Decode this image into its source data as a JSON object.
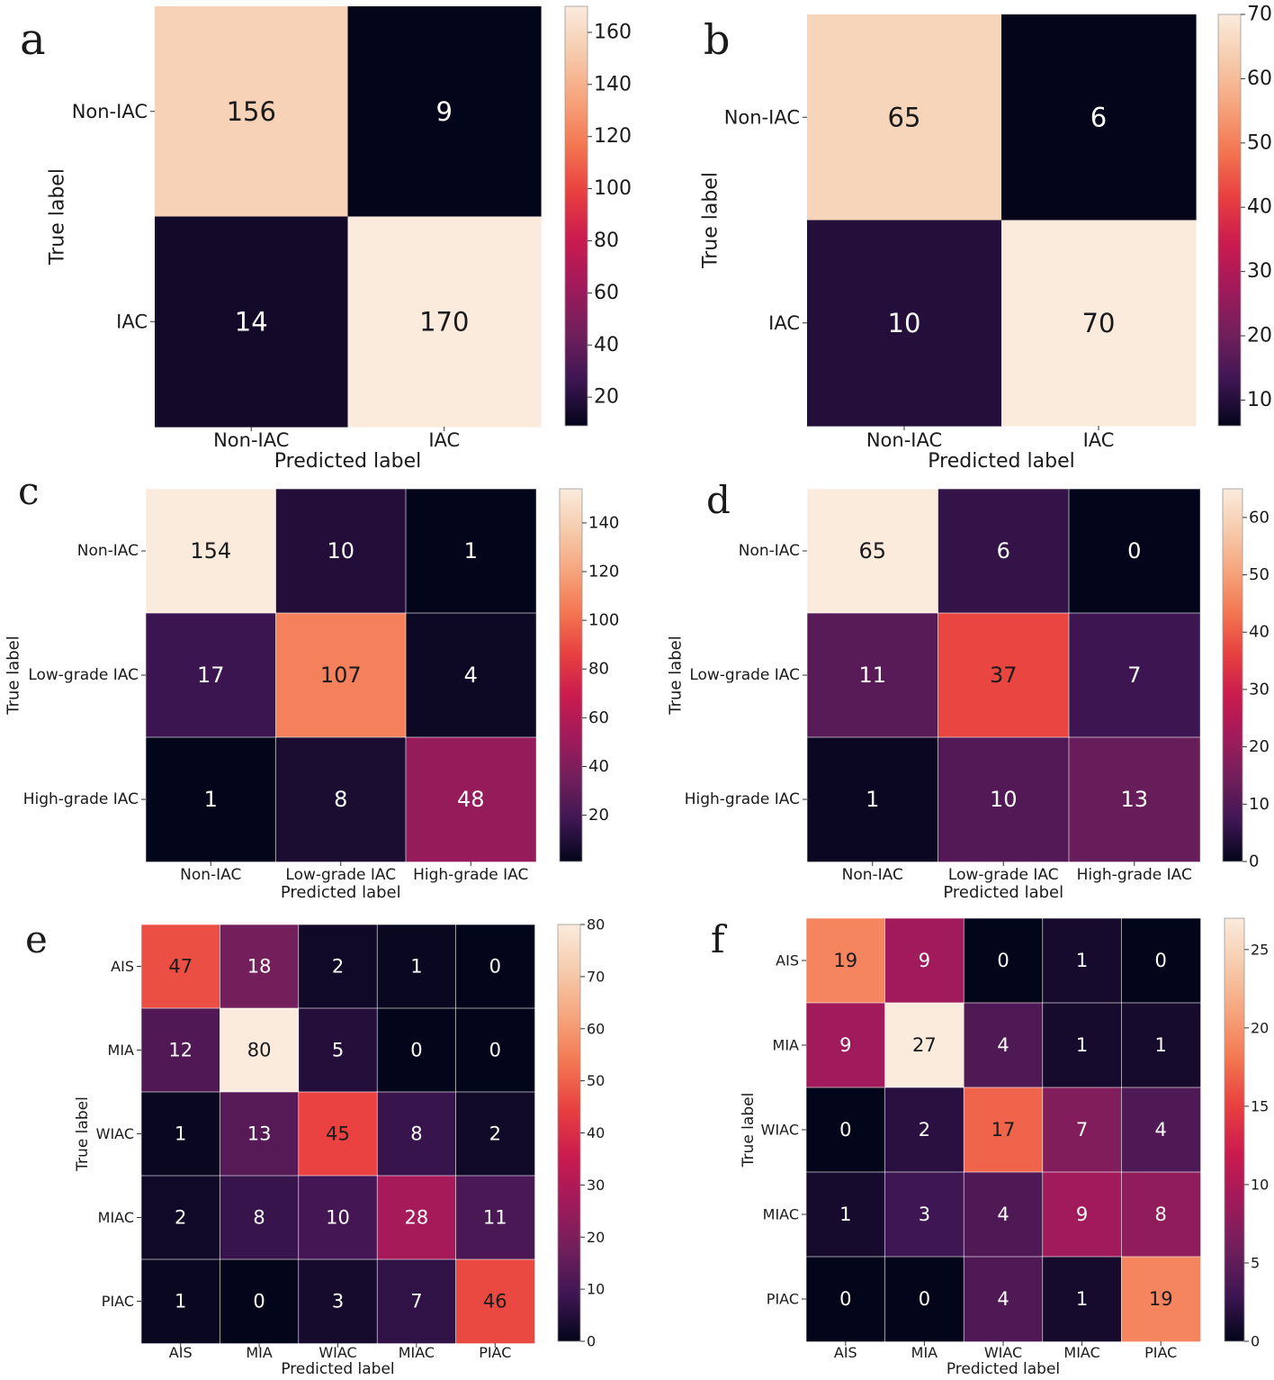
{
  "colors": {
    "stops": [
      "#03051a",
      "#3e1653",
      "#711f5b",
      "#a11a5b",
      "#cb1b4f",
      "#e83f3f",
      "#f37651",
      "#f6a47c",
      "#f6cbac",
      "#faebdd"
    ],
    "text_dark": "#1a1a1a",
    "text_light": "#ffffff"
  },
  "chart_data": [
    {
      "panel": "a",
      "type": "heatmap",
      "title": "",
      "rows": [
        "Non-IAC",
        "IAC"
      ],
      "cols": [
        "Non-IAC",
        "IAC"
      ],
      "values": [
        [
          156,
          9
        ],
        [
          14,
          170
        ]
      ],
      "ylabel": "True label",
      "xlabel": "Predicted label",
      "colorbar": {
        "range": [
          9,
          170
        ],
        "ticks": [
          20,
          40,
          60,
          80,
          100,
          120,
          140,
          160
        ]
      }
    },
    {
      "panel": "b",
      "type": "heatmap",
      "title": "",
      "rows": [
        "Non-IAC",
        "IAC"
      ],
      "cols": [
        "Non-IAC",
        "IAC"
      ],
      "values": [
        [
          65,
          6
        ],
        [
          10,
          70
        ]
      ],
      "ylabel": "True label",
      "xlabel": "Predicted label",
      "colorbar": {
        "range": [
          6,
          70
        ],
        "ticks": [
          10,
          20,
          30,
          40,
          50,
          60,
          70
        ]
      }
    },
    {
      "panel": "c",
      "type": "heatmap",
      "title": "",
      "rows": [
        "Non-IAC",
        "Low-grade IAC",
        "High-grade IAC"
      ],
      "cols": [
        "Non-IAC",
        "Low-grade IAC",
        "High-grade IAC"
      ],
      "values": [
        [
          154,
          10,
          1
        ],
        [
          17,
          107,
          4
        ],
        [
          1,
          8,
          48
        ]
      ],
      "ylabel": "True label",
      "xlabel": "Predicted label",
      "colorbar": {
        "range": [
          1,
          154
        ],
        "ticks": [
          20,
          40,
          60,
          80,
          100,
          120,
          140
        ]
      }
    },
    {
      "panel": "d",
      "type": "heatmap",
      "title": "",
      "rows": [
        "Non-IAC",
        "Low-grade IAC",
        "High-grade IAC"
      ],
      "cols": [
        "Non-IAC",
        "Low-grade IAC",
        "High-grade IAC"
      ],
      "values": [
        [
          65,
          6,
          0
        ],
        [
          11,
          37,
          7
        ],
        [
          1,
          10,
          13
        ]
      ],
      "ylabel": "True label",
      "xlabel": "Predicted label",
      "colorbar": {
        "range": [
          0,
          65
        ],
        "ticks": [
          0,
          10,
          20,
          30,
          40,
          50,
          60
        ]
      }
    },
    {
      "panel": "e",
      "type": "heatmap",
      "title": "",
      "rows": [
        "AIS",
        "MIA",
        "WIAC",
        "MIAC",
        "PIAC"
      ],
      "cols": [
        "AIS",
        "MIA",
        "WIAC",
        "MIAC",
        "PIAC"
      ],
      "values": [
        [
          47,
          18,
          2,
          1,
          0
        ],
        [
          12,
          80,
          5,
          0,
          0
        ],
        [
          1,
          13,
          45,
          8,
          2
        ],
        [
          2,
          8,
          10,
          28,
          11
        ],
        [
          1,
          0,
          3,
          7,
          46
        ]
      ],
      "ylabel": "True label",
      "xlabel": "Predicted label",
      "colorbar": {
        "range": [
          0,
          80
        ],
        "ticks": [
          0,
          10,
          20,
          30,
          40,
          50,
          60,
          70,
          80
        ]
      }
    },
    {
      "panel": "f",
      "type": "heatmap",
      "title": "",
      "rows": [
        "AIS",
        "MIA",
        "WIAC",
        "MIAC",
        "PIAC"
      ],
      "cols": [
        "AIS",
        "MIA",
        "WIAC",
        "MIAC",
        "PIAC"
      ],
      "values": [
        [
          19,
          9,
          0,
          1,
          0
        ],
        [
          9,
          27,
          4,
          1,
          1
        ],
        [
          0,
          2,
          17,
          7,
          4
        ],
        [
          1,
          3,
          4,
          9,
          8
        ],
        [
          0,
          0,
          4,
          1,
          19
        ]
      ],
      "ylabel": "True label",
      "xlabel": "Predicted label",
      "colorbar": {
        "range": [
          0,
          27
        ],
        "ticks": [
          0,
          5,
          10,
          15,
          20,
          25
        ]
      }
    }
  ]
}
